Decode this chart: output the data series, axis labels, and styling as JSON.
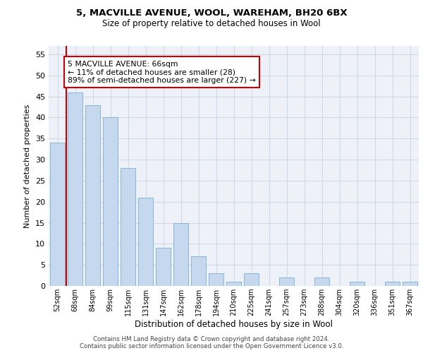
{
  "title1": "5, MACVILLE AVENUE, WOOL, WAREHAM, BH20 6BX",
  "title2": "Size of property relative to detached houses in Wool",
  "xlabel": "Distribution of detached houses by size in Wool",
  "ylabel": "Number of detached properties",
  "categories": [
    "52sqm",
    "68sqm",
    "84sqm",
    "99sqm",
    "115sqm",
    "131sqm",
    "147sqm",
    "162sqm",
    "178sqm",
    "194sqm",
    "210sqm",
    "225sqm",
    "241sqm",
    "257sqm",
    "273sqm",
    "288sqm",
    "304sqm",
    "320sqm",
    "336sqm",
    "351sqm",
    "367sqm"
  ],
  "values": [
    34,
    46,
    43,
    40,
    28,
    21,
    9,
    15,
    7,
    3,
    1,
    3,
    0,
    2,
    0,
    2,
    0,
    1,
    0,
    1,
    1
  ],
  "bar_color": "#c5d8ed",
  "bar_edge_color": "#7bafd4",
  "vline_color": "#cc0000",
  "annotation_text": "5 MACVILLE AVENUE: 66sqm\n← 11% of detached houses are smaller (28)\n89% of semi-detached houses are larger (227) →",
  "annotation_box_edge": "#cc0000",
  "ylim": [
    0,
    57
  ],
  "yticks": [
    0,
    5,
    10,
    15,
    20,
    25,
    30,
    35,
    40,
    45,
    50,
    55
  ],
  "grid_color": "#d0d8e8",
  "footer": "Contains HM Land Registry data © Crown copyright and database right 2024.\nContains public sector information licensed under the Open Government Licence v3.0.",
  "bg_color": "#eef2f8"
}
